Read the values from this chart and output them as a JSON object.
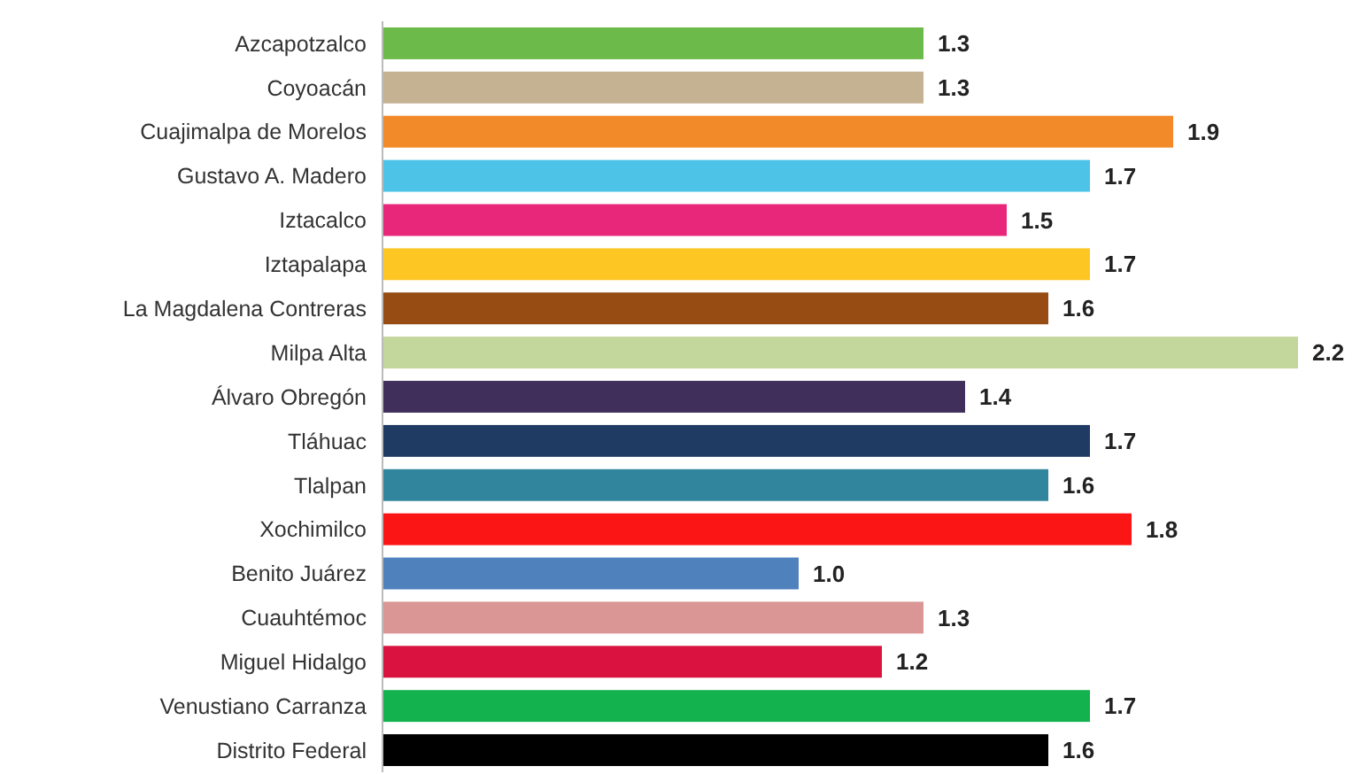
{
  "chart_data": {
    "type": "bar",
    "orientation": "horizontal",
    "value_labels": [
      "1.3",
      "1.3",
      "1.9",
      "1.7",
      "1.5",
      "1.7",
      "1.6",
      "2.2",
      "1.4",
      "1.7",
      "1.6",
      "1.8",
      "1.0",
      "1.3",
      "1.2",
      "1.7",
      "1.6"
    ],
    "categories": [
      "Azcapotzalco",
      "Coyoacán",
      "Cuajimalpa de Morelos",
      "Gustavo A. Madero",
      "Iztacalco",
      "Iztapalapa",
      "La Magdalena Contreras",
      "Milpa Alta",
      "Álvaro Obregón",
      "Tláhuac",
      "Tlalpan",
      "Xochimilco",
      "Benito Juárez",
      "Cuauhtémoc",
      "Miguel Hidalgo",
      "Venustiano Carranza",
      "Distrito Federal"
    ],
    "values": [
      1.3,
      1.3,
      1.9,
      1.7,
      1.5,
      1.7,
      1.6,
      2.2,
      1.4,
      1.7,
      1.6,
      1.8,
      1.0,
      1.3,
      1.2,
      1.7,
      1.6
    ],
    "colors": [
      "#6cbb4a",
      "#c4b293",
      "#f28a2a",
      "#4dc3e8",
      "#e8277a",
      "#fdc623",
      "#964c12",
      "#c3d69b",
      "#3f2f5a",
      "#1f3a63",
      "#31859c",
      "#fb1515",
      "#4f81bd",
      "#d99694",
      "#d9123f",
      "#13b24e",
      "#000000"
    ],
    "xlim": [
      0,
      2.2
    ]
  }
}
